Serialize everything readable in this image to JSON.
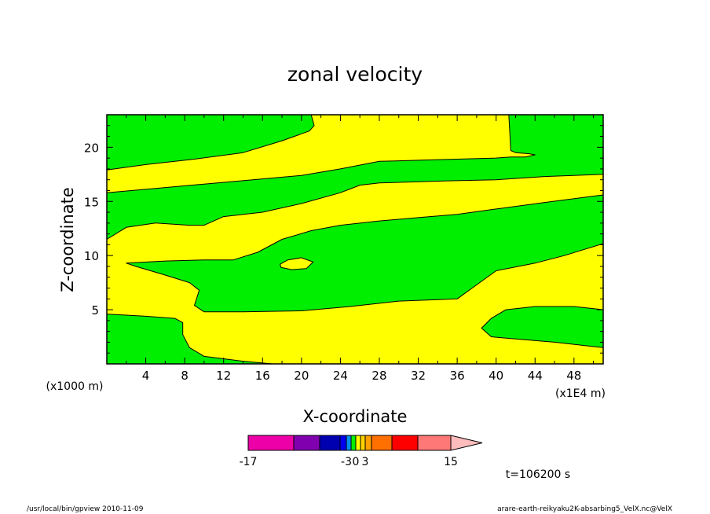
{
  "chart_data": {
    "type": "contour",
    "title": "zonal velocity",
    "xlabel": "X-coordinate",
    "ylabel": "Z-coordinate",
    "x_unit_label": "(x1000 m)",
    "x_scale_note": "(x1E4 m)",
    "xlim": [
      0,
      51
    ],
    "ylim": [
      0,
      23
    ],
    "x_ticks": [
      4,
      8,
      12,
      16,
      20,
      24,
      28,
      32,
      36,
      40,
      44,
      48
    ],
    "y_ticks": [
      5,
      10,
      15,
      20
    ],
    "regions": [
      {
        "color": "#00ee00",
        "points": [
          [
            0,
            23
          ],
          [
            21,
            23
          ],
          [
            21.3,
            22
          ],
          [
            20.8,
            21.5
          ],
          [
            18,
            20.6
          ],
          [
            14,
            19.5
          ],
          [
            9,
            18.9
          ],
          [
            4,
            18.4
          ],
          [
            0,
            17.9
          ]
        ]
      },
      {
        "color": "#00ee00",
        "points": [
          [
            0,
            15.8
          ],
          [
            5,
            16.2
          ],
          [
            10,
            16.6
          ],
          [
            15,
            17
          ],
          [
            20,
            17.4
          ],
          [
            24,
            18
          ],
          [
            28,
            18.7
          ],
          [
            32,
            18.8
          ],
          [
            36,
            18.9
          ],
          [
            40,
            19
          ],
          [
            41.5,
            19.1
          ],
          [
            43,
            19.1
          ],
          [
            44,
            19.3
          ],
          [
            43.4,
            19.4
          ],
          [
            42,
            19.5
          ],
          [
            41.5,
            19.7
          ],
          [
            41.4,
            21.5
          ],
          [
            41.3,
            23
          ],
          [
            51,
            23
          ],
          [
            51,
            17.5
          ],
          [
            45,
            17.3
          ],
          [
            40,
            17
          ],
          [
            35,
            16.9
          ],
          [
            28,
            16.7
          ],
          [
            26,
            16.5
          ],
          [
            24,
            15.8
          ],
          [
            20,
            14.8
          ],
          [
            16,
            14
          ],
          [
            12,
            13.6
          ],
          [
            10,
            12.8
          ],
          [
            8.5,
            12.8
          ],
          [
            5,
            13
          ],
          [
            2,
            12.6
          ],
          [
            0,
            11.5
          ]
        ]
      },
      {
        "color": "#00ee00",
        "points": [
          [
            2,
            9.3
          ],
          [
            6,
            9.5
          ],
          [
            10,
            9.6
          ],
          [
            13,
            9.6
          ],
          [
            15.5,
            10.3
          ],
          [
            18,
            11.5
          ],
          [
            21,
            12.3
          ],
          [
            24,
            12.8
          ],
          [
            28,
            13.2
          ],
          [
            32,
            13.5
          ],
          [
            36,
            13.8
          ],
          [
            40,
            14.3
          ],
          [
            45,
            14.9
          ],
          [
            51,
            15.6
          ],
          [
            51,
            11.1
          ],
          [
            47,
            10
          ],
          [
            44,
            9.3
          ],
          [
            40,
            8.6
          ],
          [
            38,
            7.3
          ],
          [
            36,
            6
          ],
          [
            30,
            5.8
          ],
          [
            25,
            5.3
          ],
          [
            20,
            4.9
          ],
          [
            14,
            4.8
          ],
          [
            10,
            4.8
          ],
          [
            9,
            5.4
          ],
          [
            9.5,
            6.8
          ],
          [
            8.5,
            7.5
          ],
          [
            6,
            8.2
          ],
          [
            3,
            9
          ]
        ]
      },
      {
        "color": "#00ee00",
        "points": [
          [
            0,
            4.6
          ],
          [
            4,
            4.4
          ],
          [
            7,
            4.2
          ],
          [
            7.8,
            3.8
          ],
          [
            7.8,
            2.7
          ],
          [
            8.5,
            1.5
          ],
          [
            10,
            0.7
          ],
          [
            14,
            0.25
          ],
          [
            17,
            0
          ],
          [
            0,
            0
          ]
        ]
      },
      {
        "color": "#00ee00",
        "points": [
          [
            51,
            5
          ],
          [
            48,
            5.3
          ],
          [
            44,
            5.3
          ],
          [
            41,
            5
          ],
          [
            39.5,
            4.2
          ],
          [
            38.5,
            3.3
          ],
          [
            39.5,
            2.5
          ],
          [
            42,
            2.3
          ],
          [
            46,
            2
          ],
          [
            51,
            1.5
          ]
        ]
      },
      {
        "color": "#ffff00",
        "points": [
          [
            17.8,
            9.2
          ],
          [
            18.6,
            9.6
          ],
          [
            20,
            9.8
          ],
          [
            21.2,
            9.4
          ],
          [
            20.5,
            8.8
          ],
          [
            19,
            8.7
          ],
          [
            17.9,
            8.9
          ]
        ]
      }
    ],
    "colorbar": {
      "segments": [
        {
          "color": "#ee00a8"
        },
        {
          "color": "#8000b0"
        },
        {
          "color": "#0000b0"
        },
        {
          "color": "#0000ee"
        },
        {
          "color": "#0090ee"
        },
        {
          "color": "#00ee00"
        },
        {
          "color": "#ffff00"
        },
        {
          "color": "#ffd200"
        },
        {
          "color": "#ffa000"
        },
        {
          "color": "#ff7000"
        },
        {
          "color": "#ff0000"
        },
        {
          "color": "#ff7878"
        }
      ],
      "arrow_color": "#ffbcbc",
      "labels": [
        "-17",
        "-3",
        "0",
        "3",
        "15"
      ]
    },
    "time_label": "t=106200 s"
  },
  "footer": {
    "left": "/usr/local/bin/gpview  2010-11-09",
    "right": "arare-earth-reikyaku2K-absarbing5_VelX.nc@VelX"
  }
}
